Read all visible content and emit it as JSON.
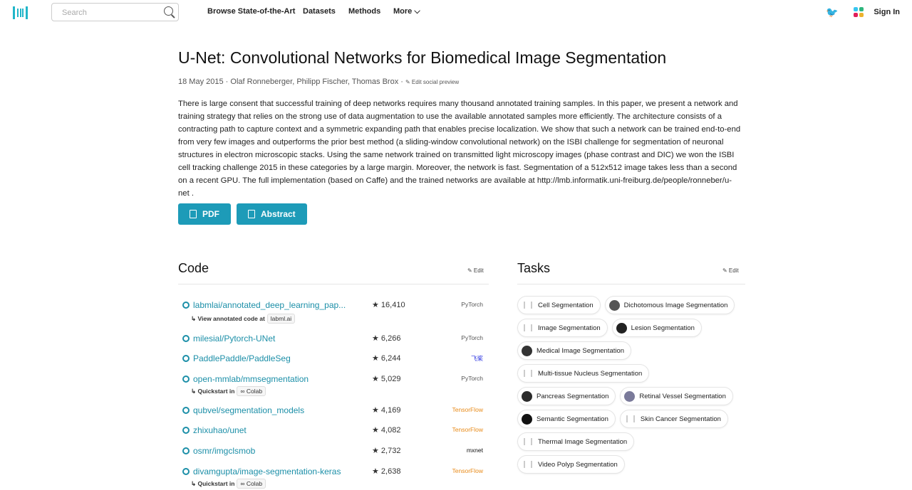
{
  "nav": {
    "search_placeholder": "Search",
    "links": [
      "Browse State-of-the-Art",
      "Datasets",
      "Methods",
      "More ⌵"
    ],
    "sign_in": "Sign In"
  },
  "paper": {
    "title": "U-Net: Convolutional Networks for Biomedical Image Segmentation",
    "date": "18 May 2015",
    "authors": "Olaf Ronneberger,  Philipp Fischer,  Thomas Brox",
    "edit_preview": "✎ Edit social preview",
    "abstract": "There is large consent that successful training of deep networks requires many thousand annotated training samples. In this paper, we present a network and training strategy that relies on the strong use of data augmentation to use the available annotated samples more efficiently. The architecture consists of a contracting path to capture context and a symmetric expanding path that enables precise localization. We show that such a network can be trained end-to-end from very few images and outperforms the prior best method (a sliding-window convolutional network) on the ISBI challenge for segmentation of neuronal structures in electron microscopic stacks. Using the same network trained on transmitted light microscopy images (phase contrast and DIC) we won the ISBI cell tracking challenge 2015 in these categories by a large margin. Moreover, the network is fast. Segmentation of a 512x512 image takes less than a second on a recent GPU. The full implementation (based on Caffe) and the trained networks are available at http://lmb.informatik.uni-freiburg.de/people/ronneber/u-net .",
    "pdf": "PDF",
    "abstract_btn": "Abstract"
  },
  "code": {
    "title": "Code",
    "edit": "✎ Edit",
    "rows": [
      {
        "repo": "labmlai/annotated_deep_learning_pap...",
        "stars": "★  16,410",
        "framework": "PyTorch",
        "sub": "↳ View annotated code at",
        "tag": "labml.ai"
      },
      {
        "repo": "milesial/Pytorch-UNet",
        "stars": "★  6,266",
        "framework": "PyTorch"
      },
      {
        "repo": "PaddlePaddle/PaddleSeg",
        "stars": "★  6,244",
        "framework": "飞桨"
      },
      {
        "repo": "open-mmlab/mmsegmentation",
        "stars": "★  5,029",
        "framework": "PyTorch",
        "sub": "↳ Quickstart in",
        "tag": "∞ Colab"
      },
      {
        "repo": "qubvel/segmentation_models",
        "stars": "★  4,169",
        "framework": "TensorFlow"
      },
      {
        "repo": "zhixuhao/unet",
        "stars": "★  4,082",
        "framework": "TensorFlow"
      },
      {
        "repo": "osmr/imgclsmob",
        "stars": "★  2,732",
        "framework": "mxnet"
      },
      {
        "repo": "divamgupta/image-segmentation-keras",
        "stars": "★  2,638",
        "framework": "TensorFlow",
        "sub": "↳ Quickstart in",
        "tag": "∞ Colab"
      }
    ]
  },
  "tasks": {
    "title": "Tasks",
    "edit": "✎ Edit",
    "items": [
      {
        "label": "Cell Segmentation",
        "img": false
      },
      {
        "label": "Dichotomous Image Segmentation",
        "img": true
      },
      {
        "label": "Image Segmentation",
        "img": false
      },
      {
        "label": "Lesion Segmentation",
        "img": true
      },
      {
        "label": "Medical Image Segmentation",
        "img": true
      },
      {
        "label": "Multi-tissue Nucleus Segmentation",
        "img": false
      },
      {
        "label": "Pancreas Segmentation",
        "img": true
      },
      {
        "label": "Retinal Vessel Segmentation",
        "img": true
      },
      {
        "label": "Semantic Segmentation",
        "img": true
      },
      {
        "label": "Skin Cancer Segmentation",
        "img": false
      },
      {
        "label": "Thermal Image Segmentation",
        "img": false
      },
      {
        "label": "Video Polyp Segmentation",
        "img": false
      }
    ]
  },
  "colors": {
    "accent": "#1d9bb8",
    "link": "#1c8fa8",
    "logo": "#21b6c9"
  }
}
